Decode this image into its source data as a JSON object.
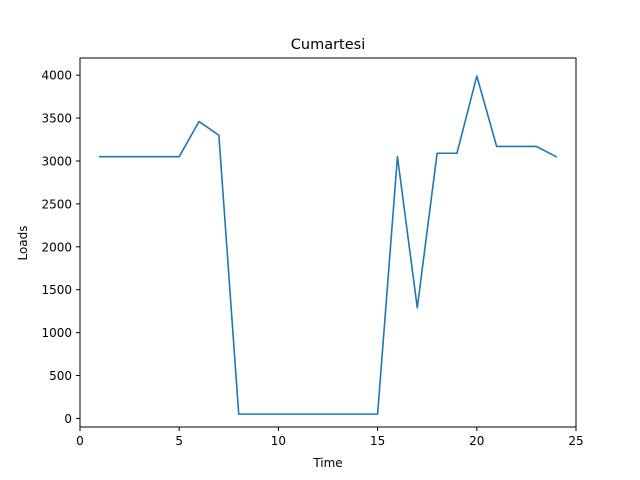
{
  "chart_data": {
    "type": "line",
    "title": "Cumartesi",
    "xlabel": "Time",
    "ylabel": "Loads",
    "xlim": [
      0,
      25
    ],
    "ylim": [
      -100,
      4200
    ],
    "xticks": [
      0,
      5,
      10,
      15,
      20,
      25
    ],
    "yticks": [
      0,
      500,
      1000,
      1500,
      2000,
      2500,
      3000,
      3500,
      4000
    ],
    "grid": false,
    "series": [
      {
        "color": "#1f77b4",
        "x": [
          1,
          2,
          3,
          4,
          5,
          6,
          7,
          8,
          9,
          10,
          11,
          12,
          13,
          14,
          15,
          16,
          17,
          18,
          19,
          20,
          21,
          22,
          23,
          24
        ],
        "y": [
          3050,
          3050,
          3050,
          3050,
          3050,
          3460,
          3300,
          50,
          50,
          50,
          50,
          50,
          50,
          50,
          50,
          3050,
          1290,
          3090,
          3090,
          3990,
          3170,
          3170,
          3170,
          3050
        ]
      }
    ]
  }
}
